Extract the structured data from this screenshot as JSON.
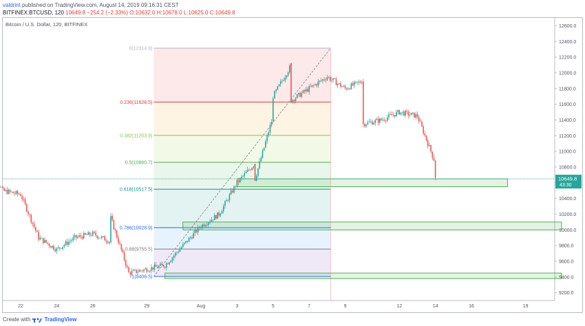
{
  "header": {
    "publisher": "valdrint",
    "published_text": "published on TradingView.com, August 14, 2019 09:16:31 CEST",
    "symbol": "BITFINEX:BTCUSD, 120",
    "ohlc": "10649.8  −254.2 (−2.33%)  O:10632.0  H:10678.0  L:10625.0  C:10649.8"
  },
  "footer": {
    "create_with": "Create with",
    "brand": "TradingView"
  },
  "chart_data": {
    "type": "candlestick",
    "title": "Bitcoin / U.S. Dollar, 120, BITFINEX",
    "x_ticks": [
      "22",
      "24",
      "26",
      "29",
      "Aug",
      "3",
      "5",
      "7",
      "9",
      "12",
      "14",
      "16",
      "19"
    ],
    "y_ticks": [
      "12600.0",
      "12400.0",
      "12200.0",
      "12000.0",
      "11800.0",
      "11600.0",
      "11400.0",
      "11200.0",
      "11000.0",
      "10800.0",
      "10600.0",
      "10400.0",
      "10200.0",
      "10000.0",
      "9800.0",
      "9600.0",
      "9400.0",
      "9200.0"
    ],
    "ylim": [
      9100,
      12700
    ],
    "last_price": "10649.8",
    "countdown": "43:30",
    "price_path": [
      [
        "Jul 20",
        10900
      ],
      [
        "Jul 21",
        10500
      ],
      [
        "Jul 22",
        10450
      ],
      [
        "Jul 23",
        9900
      ],
      [
        "Jul 24",
        9750
      ],
      [
        "Jul 25",
        9900
      ],
      [
        "Jul 26",
        9950
      ],
      [
        "Jul 27",
        9850
      ],
      [
        "Jul 27",
        10150
      ],
      [
        "Jul 28",
        9450
      ],
      [
        "Jul 29",
        9500
      ],
      [
        "Jul 30",
        9550
      ],
      [
        "Jul 31",
        9800
      ],
      [
        "Aug 1",
        10050
      ],
      [
        "Aug 2",
        10200
      ],
      [
        "Aug 3",
        10600
      ],
      [
        "Aug 4",
        10850
      ],
      [
        "Aug 4",
        10650
      ],
      [
        "Aug 5",
        11450
      ],
      [
        "Aug 5",
        11700
      ],
      [
        "Aug 6",
        12100
      ],
      [
        "Aug 6",
        11650
      ],
      [
        "Aug 7",
        11800
      ],
      [
        "Aug 8",
        11950
      ],
      [
        "Aug 9",
        11800
      ],
      [
        "Aug 10",
        11900
      ],
      [
        "Aug 10",
        11350
      ],
      [
        "Aug 11",
        11400
      ],
      [
        "Aug 12",
        11500
      ],
      [
        "Aug 13",
        11450
      ],
      [
        "Aug 14",
        10850
      ],
      [
        "Aug 14",
        10650
      ]
    ],
    "fibonacci": [
      {
        "label": "0(12314.9)",
        "value": 12314.9,
        "color": "#b2b5be"
      },
      {
        "label": "0.236(11628.5)",
        "value": 11628.5,
        "color": "#e53935"
      },
      {
        "label": "0.382(11203.9)",
        "value": 11203.9,
        "color": "#8bc34a"
      },
      {
        "label": "0.5(10860.7)",
        "value": 10860.7,
        "color": "#4caf50"
      },
      {
        "label": "0.618(10517.5)",
        "value": 10517.5,
        "color": "#009688"
      },
      {
        "label": "0.786(10028.9)",
        "value": 10028.9,
        "color": "#2962ff"
      },
      {
        "label": "0.88(9755.5)",
        "value": 9755.5,
        "color": "#787b86"
      },
      {
        "label": "1(9406.5)",
        "value": 9406.5,
        "color": "#2962ff"
      }
    ],
    "zones": [
      {
        "from": "Aug 3",
        "to": "Aug 18",
        "low": 10550,
        "high": 10650
      },
      {
        "from": "Jul 31",
        "to": "Aug 21",
        "low": 10000,
        "high": 10100
      },
      {
        "from": "Jul 30",
        "to": "Aug 21",
        "low": 9380,
        "high": 9450
      }
    ],
    "colors": {
      "up": "#26a69a",
      "down": "#ef5350",
      "zone": "#4caf50",
      "price": "#26a69a"
    }
  }
}
